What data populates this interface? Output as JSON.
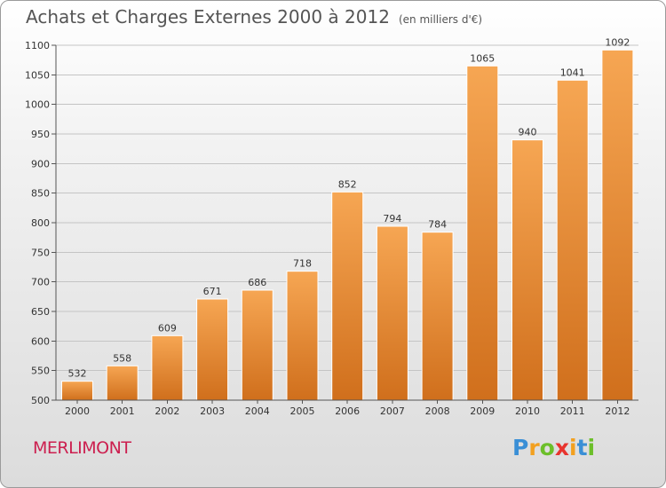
{
  "header": {
    "title": "Achats et Charges Externes 2000 à 2012",
    "unit": "(en milliers d'€)"
  },
  "footer": {
    "town": "MERLIMONT",
    "logo_letters": [
      "P",
      "r",
      "o",
      "x",
      "i",
      "t",
      "i"
    ],
    "logo_colors": [
      "#3a8fd6",
      "#f2a020",
      "#6cbf2a",
      "#e8342e",
      "#f2a020",
      "#3a8fd6",
      "#6cbf2a"
    ]
  },
  "chart_data": {
    "type": "bar",
    "categories": [
      "2000",
      "2001",
      "2002",
      "2003",
      "2004",
      "2005",
      "2006",
      "2007",
      "2008",
      "2009",
      "2010",
      "2011",
      "2012"
    ],
    "values": [
      532,
      558,
      609,
      671,
      686,
      718,
      852,
      794,
      784,
      1065,
      940,
      1041,
      1092
    ],
    "title": "Achats et Charges Externes 2000 à 2012",
    "ylim": [
      500,
      1100
    ],
    "yticks": [
      500,
      550,
      600,
      650,
      700,
      750,
      800,
      850,
      900,
      950,
      1000,
      1050,
      1100
    ],
    "grid": true,
    "bar_color_top": "#f6a653",
    "bar_color_bottom": "#d06f1c"
  }
}
